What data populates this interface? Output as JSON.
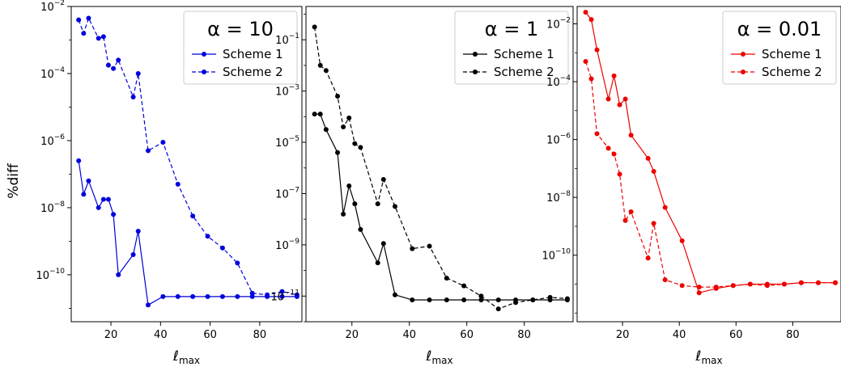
{
  "figure": {
    "ylabel": "%diff"
  },
  "chart_data": [
    {
      "type": "line",
      "xlabel": "ℓ",
      "xlabel_sub": "max",
      "legend_title": "α = 10",
      "legend_position": "top-right",
      "xlim": [
        4,
        97
      ],
      "ylim_exp": [
        -11.4,
        -2
      ],
      "scale_y": "log",
      "xticks": [
        20,
        40,
        60,
        80
      ],
      "yticks_exp": [
        -10,
        -8,
        -6,
        -4,
        -2
      ],
      "color": "#0000dd",
      "series": [
        {
          "name": "Scheme 1",
          "dash": "solid",
          "x": [
            7,
            9,
            11,
            15,
            17,
            19,
            21,
            23,
            29,
            31,
            35,
            41,
            47,
            53,
            59,
            65,
            71,
            77,
            83,
            89,
            95
          ],
          "y_exp": [
            -6.6,
            -7.6,
            -7.2,
            -8.0,
            -7.75,
            -7.75,
            -8.2,
            -10.0,
            -9.4,
            -8.7,
            -10.9,
            -10.65,
            -10.65,
            -10.65,
            -10.65,
            -10.65,
            -10.65,
            -10.65,
            -10.65,
            -10.65,
            -10.65
          ]
        },
        {
          "name": "Scheme 2",
          "dash": "dashed",
          "x": [
            7,
            9,
            11,
            15,
            17,
            19,
            21,
            23,
            29,
            31,
            35,
            41,
            47,
            53,
            59,
            65,
            71,
            77,
            83,
            89,
            95
          ],
          "y_exp": [
            -2.4,
            -2.8,
            -2.35,
            -2.95,
            -2.9,
            -3.75,
            -3.85,
            -3.6,
            -4.7,
            -4.0,
            -6.3,
            -6.05,
            -7.3,
            -8.25,
            -8.85,
            -9.2,
            -9.65,
            -10.55,
            -10.6,
            -10.5,
            -10.6
          ]
        }
      ]
    },
    {
      "type": "line",
      "xlabel": "ℓ",
      "xlabel_sub": "max",
      "legend_title": "α = 1",
      "legend_position": "top-right",
      "xlim": [
        4,
        97
      ],
      "ylim_exp": [
        -12,
        0.3
      ],
      "scale_y": "log",
      "xticks": [
        20,
        40,
        60,
        80
      ],
      "yticks_exp": [
        -11,
        -9,
        -7,
        -5,
        -3,
        -1
      ],
      "color": "#000000",
      "series": [
        {
          "name": "Scheme 1",
          "dash": "solid",
          "x": [
            7,
            9,
            11,
            15,
            17,
            19,
            21,
            23,
            29,
            31,
            35,
            41,
            47,
            53,
            59,
            65,
            71,
            77,
            83,
            89,
            95
          ],
          "y_exp": [
            -3.9,
            -3.9,
            -4.5,
            -5.4,
            -7.8,
            -6.7,
            -7.4,
            -8.4,
            -9.7,
            -8.95,
            -10.95,
            -11.15,
            -11.15,
            -11.15,
            -11.15,
            -11.15,
            -11.15,
            -11.15,
            -11.15,
            -11.15,
            -11.15
          ]
        },
        {
          "name": "Scheme 2",
          "dash": "dashed",
          "x": [
            7,
            9,
            11,
            15,
            17,
            19,
            21,
            23,
            29,
            31,
            35,
            41,
            47,
            53,
            59,
            65,
            71,
            77,
            83,
            89,
            95
          ],
          "y_exp": [
            -0.5,
            -2.0,
            -2.2,
            -3.2,
            -4.4,
            -4.05,
            -5.05,
            -5.2,
            -7.4,
            -6.45,
            -7.5,
            -9.15,
            -9.05,
            -10.3,
            -10.6,
            -11.0,
            -11.5,
            -11.25,
            -11.15,
            -11.05,
            -11.1
          ]
        }
      ]
    },
    {
      "type": "line",
      "xlabel": "ℓ",
      "xlabel_sub": "max",
      "legend_title": "α = 0.01",
      "legend_position": "top-right",
      "xlim": [
        4,
        97
      ],
      "ylim_exp": [
        -12.3,
        -1.4
      ],
      "scale_y": "log",
      "xticks": [
        20,
        40,
        60,
        80
      ],
      "yticks_exp": [
        -10,
        -8,
        -6,
        -4,
        -2
      ],
      "color": "#ee0000",
      "series": [
        {
          "name": "Scheme 1",
          "dash": "solid",
          "x": [
            7,
            9,
            11,
            15,
            17,
            19,
            21,
            23,
            29,
            31,
            35,
            41,
            47,
            53,
            59,
            65,
            71,
            77,
            83,
            89,
            95
          ],
          "y_exp": [
            -1.6,
            -1.85,
            -2.9,
            -4.6,
            -3.8,
            -4.8,
            -4.6,
            -5.85,
            -6.65,
            -7.1,
            -8.35,
            -9.5,
            -11.3,
            -11.15,
            -11.05,
            -11.0,
            -11.0,
            -11.0,
            -10.95,
            -10.95,
            -10.95
          ]
        },
        {
          "name": "Scheme 2",
          "dash": "dashed",
          "x": [
            7,
            9,
            11,
            15,
            17,
            19,
            21,
            23,
            29,
            31,
            35,
            41,
            47,
            53,
            59,
            65,
            71,
            77,
            83,
            89,
            95
          ],
          "y_exp": [
            -3.3,
            -3.9,
            -5.8,
            -6.3,
            -6.5,
            -7.2,
            -8.8,
            -8.5,
            -10.1,
            -8.9,
            -10.85,
            -11.05,
            -11.1,
            -11.1,
            -11.05,
            -11.0,
            -11.05,
            -11.0,
            -10.95,
            -10.95,
            -10.95
          ]
        }
      ]
    }
  ]
}
